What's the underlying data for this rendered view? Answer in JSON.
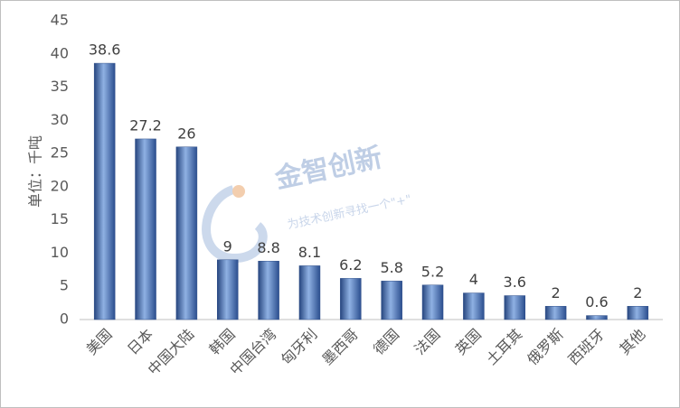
{
  "chart_data": {
    "type": "bar",
    "y_label": "单位：千吨",
    "categories": [
      "美国",
      "日本",
      "中国大陆",
      "韩国",
      "中国台湾",
      "匈牙利",
      "墨西哥",
      "德国",
      "法国",
      "英国",
      "土耳其",
      "俄罗斯",
      "西班牙",
      "其他"
    ],
    "values": [
      38.6,
      27.2,
      26,
      9,
      8.8,
      8.1,
      6.2,
      5.8,
      5.2,
      4,
      3.6,
      2,
      0.6,
      2
    ],
    "color": "#4a72b8",
    "ylim": [
      0,
      45
    ],
    "yticks": [
      0,
      5,
      10,
      15,
      20,
      25,
      30,
      35,
      40,
      45
    ],
    "grid": false,
    "watermark": {
      "title": "金智创新",
      "slogan": "为技术创新寻找一个\"+\""
    }
  }
}
